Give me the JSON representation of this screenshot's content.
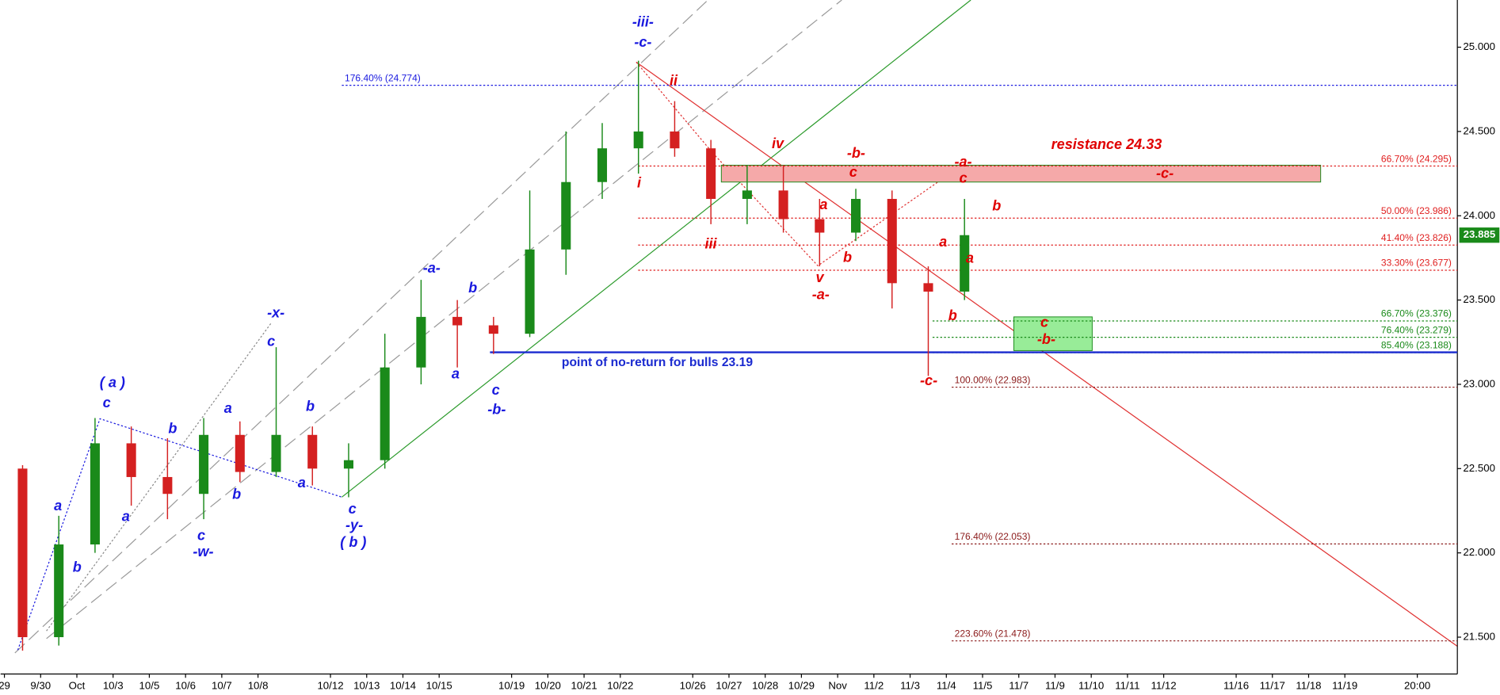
{
  "chart_data": {
    "type": "candlestick",
    "categories": [
      "29",
      "9/30",
      "Oct",
      "10/3",
      "10/5",
      "10/6",
      "10/7",
      "10/8",
      null,
      "10/12",
      "10/13",
      "10/14",
      "10/15",
      null,
      "10/19",
      "10/20",
      "10/21",
      "10/22",
      null,
      "10/26",
      "10/27",
      "10/28",
      "10/29",
      "Nov",
      "11/2",
      "11/3",
      "11/4",
      "11/5",
      "11/7",
      "11/9",
      "11/10",
      "11/11",
      "11/12",
      null,
      "11/16",
      "11/17",
      "11/18",
      "11/19",
      null,
      "20:00"
    ],
    "open": [
      22.5,
      21.5,
      22.05,
      22.65,
      22.45,
      22.35,
      22.7,
      22.48,
      22.7,
      22.5,
      22.55,
      23.1,
      23.4,
      23.35,
      23.3,
      23.8,
      24.2,
      24.4,
      24.5,
      24.4,
      24.1,
      24.15,
      23.98,
      23.9,
      24.1,
      23.6,
      23.55,
      null,
      null,
      null,
      null,
      null,
      null,
      null,
      null,
      null,
      null,
      null,
      null,
      null
    ],
    "high": [
      22.52,
      22.22,
      22.8,
      22.75,
      22.68,
      22.8,
      22.78,
      23.22,
      22.75,
      22.65,
      23.3,
      23.62,
      23.5,
      23.4,
      24.15,
      24.5,
      24.55,
      24.92,
      24.68,
      24.45,
      24.3,
      24.3,
      24.1,
      24.16,
      24.15,
      23.7,
      24.1,
      null,
      null,
      null,
      null,
      null,
      null,
      null,
      null,
      null,
      null,
      null,
      null,
      null
    ],
    "low": [
      21.42,
      21.45,
      22.0,
      22.28,
      22.2,
      22.2,
      22.42,
      22.45,
      22.4,
      22.33,
      22.5,
      23.0,
      23.1,
      23.18,
      23.28,
      23.65,
      24.1,
      24.25,
      24.35,
      23.95,
      23.95,
      23.9,
      23.7,
      23.85,
      23.45,
      23.05,
      23.5,
      null,
      null,
      null,
      null,
      null,
      null,
      null,
      null,
      null,
      null,
      null,
      null,
      null
    ],
    "close": [
      21.5,
      22.05,
      22.65,
      22.45,
      22.35,
      22.7,
      22.48,
      22.7,
      22.5,
      22.55,
      23.1,
      23.4,
      23.35,
      23.3,
      23.8,
      24.2,
      24.4,
      24.5,
      24.4,
      24.1,
      24.15,
      23.98,
      23.9,
      24.1,
      23.6,
      23.55,
      23.885,
      null,
      null,
      null,
      null,
      null,
      null,
      null,
      null,
      null,
      null,
      null,
      null,
      null
    ],
    "up_color": "#1a8a1a",
    "down_color": "#d42020",
    "ylim": [
      21.31,
      25.28
    ],
    "yticks": [
      {
        "value": 21.5,
        "label": "21.500"
      },
      {
        "value": 22,
        "label": "22.000"
      },
      {
        "value": 22.5,
        "label": "22.500"
      },
      {
        "value": 23,
        "label": "23.000"
      },
      {
        "value": 23.5,
        "label": "23.500"
      },
      {
        "value": 24,
        "label": "24.000"
      },
      {
        "value": 24.5,
        "label": "24.500"
      },
      {
        "value": 25,
        "label": "25.000"
      }
    ],
    "levels": [
      {
        "value": 24.774,
        "label": "176.40% (24.774)",
        "color": "#1a1adf",
        "style": "dotted"
      },
      {
        "value": 24.295,
        "label": "66.70% (24.295)",
        "color": "#e02020",
        "style": "dotted"
      },
      {
        "value": 23.986,
        "label": "50.00% (23.986)",
        "color": "#e02020",
        "style": "dotted"
      },
      {
        "value": 23.826,
        "label": "41.40% (23.826)",
        "color": "#e02020",
        "style": "dotted"
      },
      {
        "value": 23.677,
        "label": "33.30% (23.677)",
        "color": "#e02020",
        "style": "dotted"
      },
      {
        "value": 23.376,
        "label": "66.70% (23.376)",
        "color": "#1a8a1a",
        "style": "dotted"
      },
      {
        "value": 23.279,
        "label": "76.40% (23.279)",
        "color": "#1a8a1a",
        "style": "dotted"
      },
      {
        "value": 23.188,
        "label": "85.40% (23.188)",
        "color": "#1a8a1a",
        "style": "dotted"
      },
      {
        "value": 22.983,
        "label": "100.00% (22.983)",
        "color": "#8b1a1a",
        "style": "dotted"
      },
      {
        "value": 22.053,
        "label": "176.40% (22.053)",
        "color": "#8b1a1a",
        "style": "dotted"
      },
      {
        "value": 21.478,
        "label": "223.60% (21.478)",
        "color": "#8b1a1a",
        "style": "dotted"
      },
      {
        "value": 23.19,
        "label": "point of no-return for bulls 23.19",
        "color": "#1a2ad0",
        "style": "solid"
      }
    ],
    "zones": [
      {
        "label": "resistance 24.33",
        "low": 24.2,
        "high": 24.3,
        "color": "#f5a9a9"
      },
      {
        "low": 23.2,
        "high": 23.4,
        "color": "#98ec98"
      }
    ],
    "annotations": [
      {
        "text": "-iii-",
        "color": "#1a1adf"
      },
      {
        "text": "-c-",
        "color": "#1a1adf"
      },
      {
        "text": "( a )",
        "color": "#1a1adf"
      },
      {
        "text": "c",
        "color": "#1a1adf"
      },
      {
        "text": "a",
        "color": "#1a1adf"
      },
      {
        "text": "b",
        "color": "#1a1adf"
      },
      {
        "text": "a",
        "color": "#1a1adf"
      },
      {
        "text": "b",
        "color": "#1a1adf"
      },
      {
        "text": "c",
        "color": "#1a1adf"
      },
      {
        "text": "-w-",
        "color": "#1a1adf"
      },
      {
        "text": "a",
        "color": "#1a1adf"
      },
      {
        "text": "b",
        "color": "#1a1adf"
      },
      {
        "text": "c",
        "color": "#1a1adf"
      },
      {
        "text": "-x-",
        "color": "#1a1adf"
      },
      {
        "text": "b",
        "color": "#1a1adf"
      },
      {
        "text": "a",
        "color": "#1a1adf"
      },
      {
        "text": "c",
        "color": "#1a1adf"
      },
      {
        "text": "-y-",
        "color": "#1a1adf"
      },
      {
        "text": "( b )",
        "color": "#1a1adf"
      },
      {
        "text": "-a-",
        "color": "#1a1adf"
      },
      {
        "text": "b",
        "color": "#1a1adf"
      },
      {
        "text": "a",
        "color": "#1a1adf"
      },
      {
        "text": "c",
        "color": "#1a1adf"
      },
      {
        "text": "-b-",
        "color": "#1a1adf"
      },
      {
        "text": "ii",
        "color": "#e00000"
      },
      {
        "text": "i",
        "color": "#e00000"
      },
      {
        "text": "iii",
        "color": "#e00000"
      },
      {
        "text": "iv",
        "color": "#e00000"
      },
      {
        "text": "v",
        "color": "#e00000"
      },
      {
        "text": "-a-",
        "color": "#e00000"
      },
      {
        "text": "a",
        "color": "#e00000"
      },
      {
        "text": "b",
        "color": "#e00000"
      },
      {
        "text": "-b-",
        "color": "#e00000"
      },
      {
        "text": "c",
        "color": "#e00000"
      },
      {
        "text": "-a-",
        "color": "#e00000"
      },
      {
        "text": "c",
        "color": "#e00000"
      },
      {
        "text": "b",
        "color": "#e00000"
      },
      {
        "text": "a",
        "color": "#e00000"
      },
      {
        "text": "a",
        "color": "#e00000"
      },
      {
        "text": "b",
        "color": "#e00000"
      },
      {
        "text": "-c-",
        "color": "#e00000"
      },
      {
        "text": "-c-",
        "color": "#e00000"
      },
      {
        "text": "c",
        "color": "#e00000"
      },
      {
        "text": "-b-",
        "color": "#e00000"
      }
    ]
  }
}
